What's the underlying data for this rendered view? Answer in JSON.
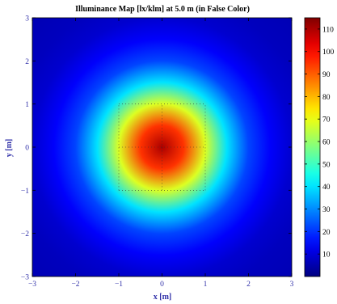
{
  "chart_data": {
    "type": "heatmap",
    "title": "Illuminance Map [lx/klm] at 5.0 m (in False Color)",
    "xlabel": "x [m]",
    "ylabel": "y [m]",
    "xlim": [
      -3,
      3
    ],
    "ylim": [
      -3,
      3
    ],
    "x_ticks": [
      -3,
      -2,
      -1,
      0,
      1,
      2,
      3
    ],
    "y_ticks": [
      -3,
      -2,
      -1,
      0,
      1,
      2,
      3
    ],
    "x_tick_labels": [
      "−3",
      "−2",
      "−1",
      "0",
      "1",
      "2",
      "3"
    ],
    "y_tick_labels": [
      "−3",
      "−2",
      "−1",
      "0",
      "1",
      "2",
      "3"
    ],
    "grid": "dotted, at −1, 0, 1 in x and y",
    "colorbar": {
      "colormap": "jet",
      "range": [
        0,
        115
      ],
      "ticks": [
        10,
        20,
        30,
        40,
        50,
        60,
        70,
        80,
        90,
        100,
        110
      ],
      "tick_labels": [
        "10",
        "20",
        "30",
        "40",
        "50",
        "60",
        "70",
        "80",
        "90",
        "100",
        "110"
      ],
      "placement": "right"
    },
    "illuminance_profile": {
      "description": "radially symmetric distribution centred at (0,0)",
      "r_m": [
        0,
        0.5,
        1.0,
        1.5,
        2.0,
        2.5,
        3.0,
        3.5,
        4.2
      ],
      "value": [
        110,
        95,
        68,
        40,
        22,
        14,
        9,
        7,
        6
      ]
    }
  }
}
